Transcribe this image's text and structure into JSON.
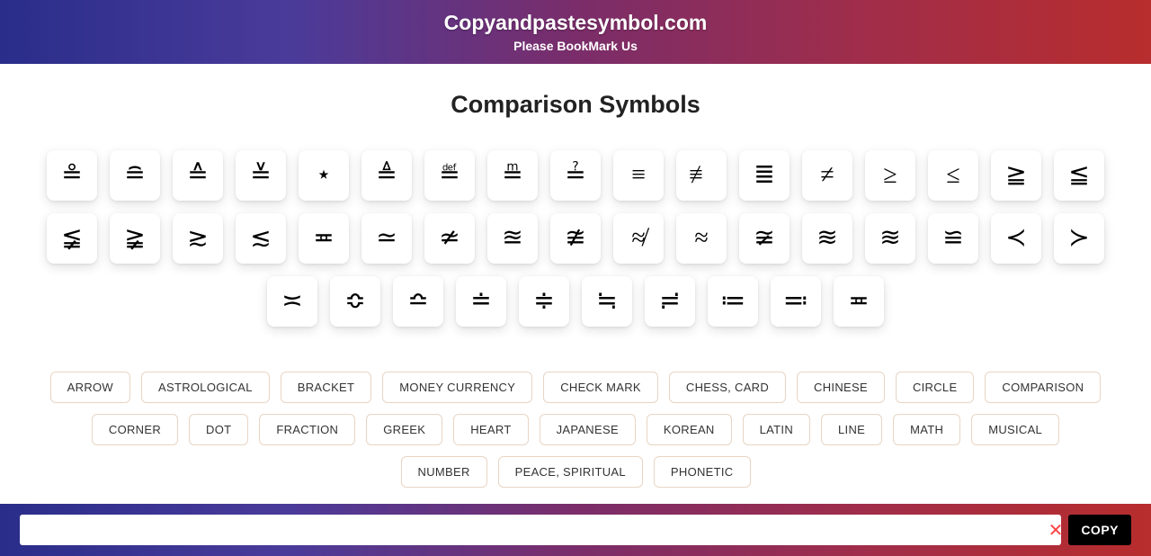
{
  "header": {
    "title": "Copyandpastesymbol.com",
    "subtitle": "Please BookMark Us"
  },
  "page": {
    "title": "Comparison Symbols"
  },
  "symbols": [
    "≗",
    "≘",
    "≙",
    "≚",
    "⋆",
    "≜",
    "≝",
    "≞",
    "≟",
    "≡",
    "≢",
    "≣",
    "≠",
    "≥",
    "≤",
    "≧",
    "≦",
    "≨",
    "≩",
    "≳",
    "≲",
    "≖",
    "≃",
    "≄",
    "≊",
    "≇",
    "≉",
    "≈",
    "≆",
    "≋",
    "≋",
    "≌",
    "≺",
    "≻",
    "≍",
    "≎",
    "≏",
    "≐",
    "≑",
    "≒",
    "≓",
    "≔",
    "≕",
    "≖"
  ],
  "categories": {
    "row1": [
      "ARROW",
      "ASTROLOGICAL",
      "BRACKET",
      "MONEY CURRENCY",
      "CHECK MARK",
      "CHESS, CARD",
      "CHINESE",
      "CIRCLE",
      "COMPARISON",
      "CORNER",
      "DOT"
    ],
    "row2": [
      "FRACTION",
      "GREEK",
      "HEART",
      "JAPANESE",
      "KOREAN",
      "LATIN",
      "LINE",
      "MATH",
      "MUSICAL",
      "NUMBER",
      "PEACE, SPIRITUAL",
      "PHONETIC"
    ]
  },
  "bottomBar": {
    "copyLabel": "COPY",
    "closeGlyph": "✕",
    "inputValue": ""
  },
  "styling": {
    "gradient_colors": [
      "#2a2d8a",
      "#4a3b9a",
      "#7a2d6a",
      "#a02d4a",
      "#b82d2d"
    ],
    "tile_bg": "#ffffff",
    "tile_shadow": "0 4px 12px rgba(0,0,0,0.12)",
    "pill_border": "#e8d5c4",
    "copy_btn_bg": "#000000",
    "close_color": "#ff4444",
    "symbol_fontsize": 28,
    "title_fontsize": 27,
    "header_title_fontsize": 23
  }
}
